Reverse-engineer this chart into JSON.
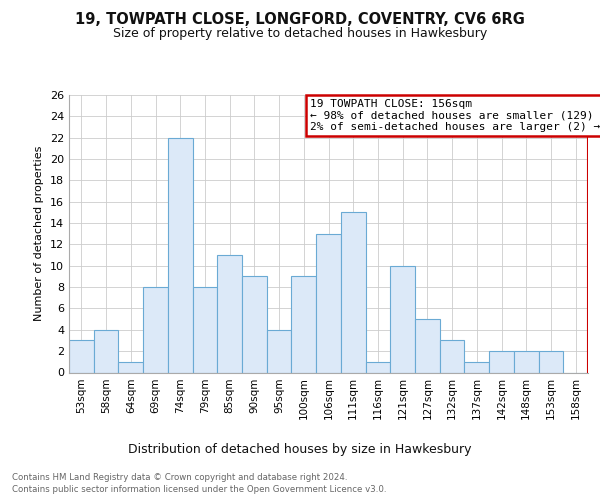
{
  "title": "19, TOWPATH CLOSE, LONGFORD, COVENTRY, CV6 6RG",
  "subtitle": "Size of property relative to detached houses in Hawkesbury",
  "xlabel": "Distribution of detached houses by size in Hawkesbury",
  "ylabel": "Number of detached properties",
  "categories": [
    "53sqm",
    "58sqm",
    "64sqm",
    "69sqm",
    "74sqm",
    "79sqm",
    "85sqm",
    "90sqm",
    "95sqm",
    "100sqm",
    "106sqm",
    "111sqm",
    "116sqm",
    "121sqm",
    "127sqm",
    "132sqm",
    "137sqm",
    "142sqm",
    "148sqm",
    "153sqm",
    "158sqm"
  ],
  "values": [
    3,
    4,
    1,
    8,
    22,
    8,
    11,
    9,
    4,
    9,
    13,
    15,
    1,
    10,
    5,
    3,
    1,
    2,
    2,
    2,
    0
  ],
  "bar_color": "#dce9f8",
  "bar_edge_color": "#6aaad4",
  "property_line_x": 20.5,
  "property_label": "19 TOWPATH CLOSE: 156sqm",
  "annotation_line1": "← 98% of detached houses are smaller (129)",
  "annotation_line2": "2% of semi-detached houses are larger (2) →",
  "annotation_box_color": "#cc0000",
  "ylim": [
    0,
    26
  ],
  "yticks": [
    0,
    2,
    4,
    6,
    8,
    10,
    12,
    14,
    16,
    18,
    20,
    22,
    24,
    26
  ],
  "footer_line1": "Contains HM Land Registry data © Crown copyright and database right 2024.",
  "footer_line2": "Contains public sector information licensed under the Open Government Licence v3.0.",
  "background_color": "#ffffff",
  "grid_color": "#cccccc",
  "title_fontsize": 10.5,
  "subtitle_fontsize": 9,
  "ylabel_fontsize": 8,
  "xlabel_fontsize": 9
}
